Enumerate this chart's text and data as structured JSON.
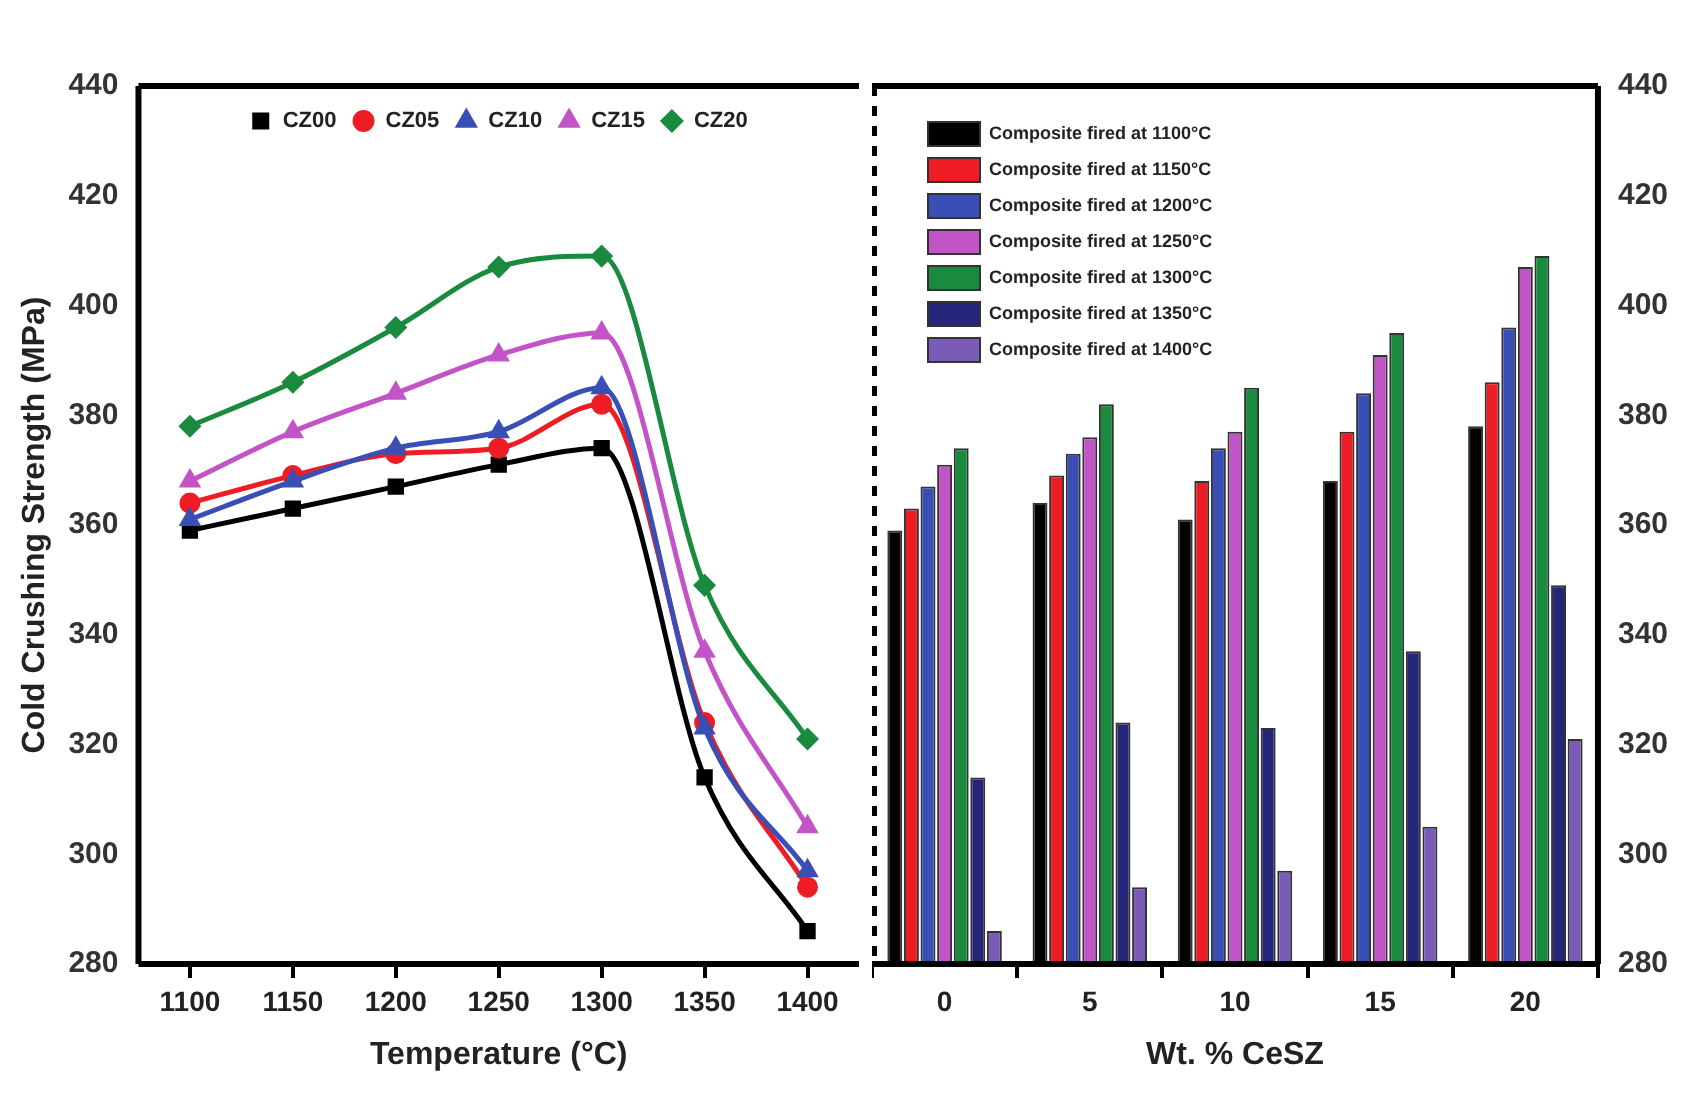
{
  "chart_data": [
    {
      "type": "line",
      "xlabel": "Temperature (°C)",
      "ylabel": "Cold Crushing Strength (MPa)",
      "categories": [
        "1100",
        "1150",
        "1200",
        "1250",
        "1300",
        "1350",
        "1400"
      ],
      "ylim": [
        280,
        440
      ],
      "yticks": [
        280,
        300,
        320,
        340,
        360,
        380,
        400,
        420,
        440
      ],
      "grid": false,
      "legend": "top",
      "line_style": "solid",
      "series": [
        {
          "name": "CZ00",
          "color": "#000000",
          "marker": "square",
          "values": [
            359,
            363,
            367,
            371,
            374,
            314,
            286
          ]
        },
        {
          "name": "CZ05",
          "color": "#ee1c24",
          "marker": "circle",
          "values": [
            364,
            369,
            373,
            374,
            382,
            324,
            294
          ]
        },
        {
          "name": "CZ10",
          "color": "#3a4fb5",
          "marker": "triangle",
          "values": [
            361,
            368,
            374,
            377,
            385,
            323,
            297
          ]
        },
        {
          "name": "CZ15",
          "color": "#c354c8",
          "marker": "triangle",
          "values": [
            368,
            377,
            384,
            391,
            395,
            337,
            305
          ]
        },
        {
          "name": "CZ20",
          "color": "#1a8a3e",
          "marker": "diamond",
          "values": [
            378,
            386,
            396,
            407,
            409,
            349,
            321
          ]
        }
      ]
    },
    {
      "type": "bar",
      "xlabel": "Wt. % CeSZ",
      "categories": [
        "0",
        "5",
        "10",
        "15",
        "20"
      ],
      "ylim": [
        280,
        440
      ],
      "yticks": [
        280,
        300,
        320,
        340,
        360,
        380,
        400,
        420,
        440
      ],
      "grid": false,
      "legend": "top left",
      "series": [
        {
          "name": "Composite fired at 1100°C",
          "color": "#000000",
          "values": [
            359,
            364,
            361,
            368,
            378
          ]
        },
        {
          "name": "Composite fired at 1150°C",
          "color": "#ee1c24",
          "values": [
            363,
            369,
            368,
            377,
            386
          ]
        },
        {
          "name": "Composite fired at 1200°C",
          "color": "#3a4fb5",
          "values": [
            367,
            373,
            374,
            384,
            396
          ]
        },
        {
          "name": "Composite fired at 1250°C",
          "color": "#c354c8",
          "values": [
            371,
            376,
            377,
            391,
            407
          ]
        },
        {
          "name": "Composite fired at 1300°C",
          "color": "#1a8a3e",
          "values": [
            374,
            382,
            385,
            395,
            409
          ]
        },
        {
          "name": "Composite fired at 1350°C",
          "color": "#25267a",
          "values": [
            314,
            324,
            323,
            337,
            349
          ]
        },
        {
          "name": "Composite fired at 1400°C",
          "color": "#7a5cb8",
          "values": [
            286,
            294,
            297,
            305,
            321
          ]
        }
      ]
    }
  ]
}
